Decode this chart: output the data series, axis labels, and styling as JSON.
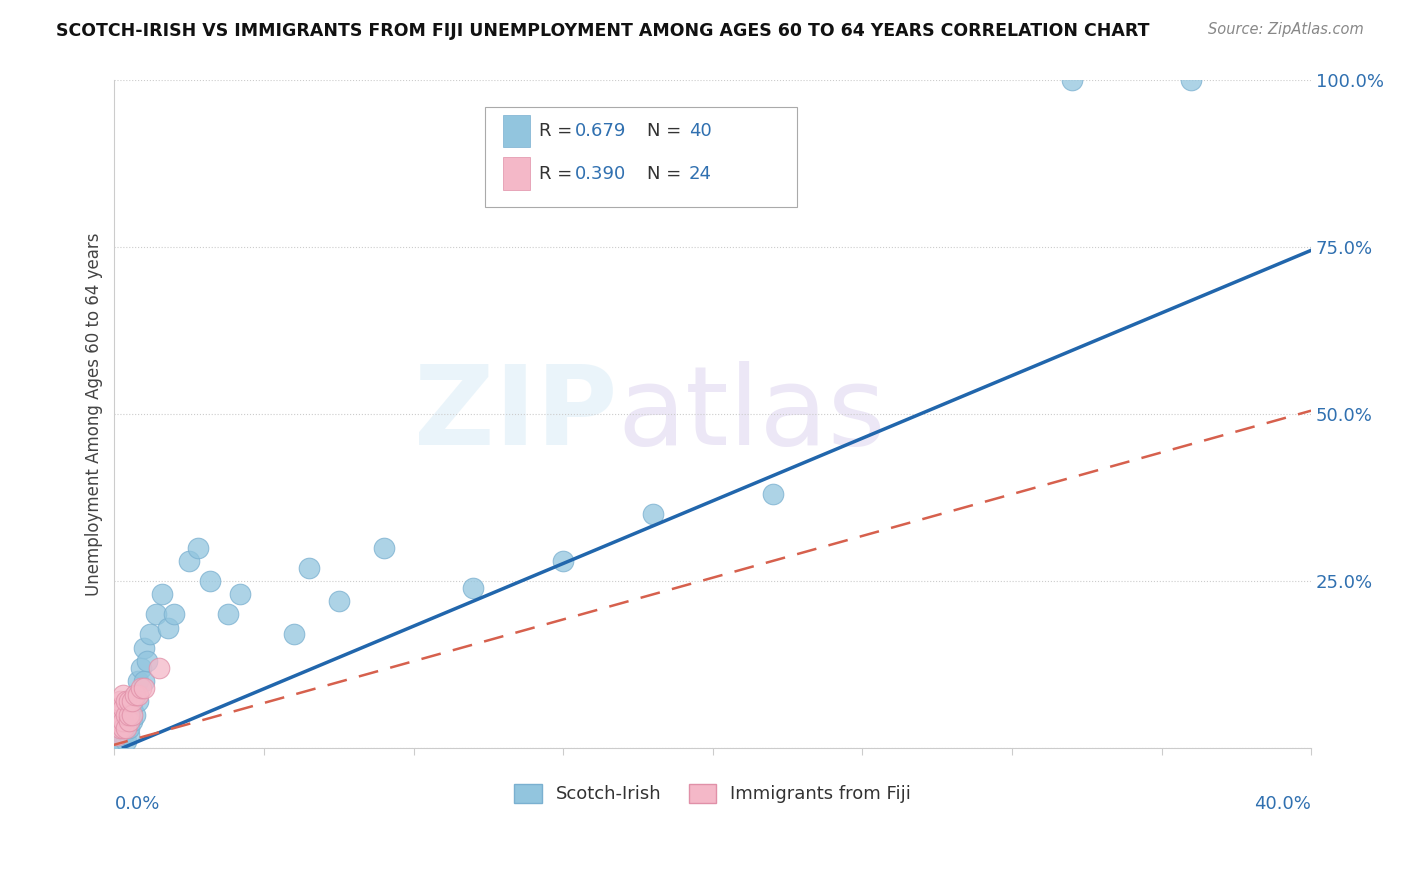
{
  "title": "SCOTCH-IRISH VS IMMIGRANTS FROM FIJI UNEMPLOYMENT AMONG AGES 60 TO 64 YEARS CORRELATION CHART",
  "source": "Source: ZipAtlas.com",
  "ylabel": "Unemployment Among Ages 60 to 64 years",
  "xlim": [
    0.0,
    0.4
  ],
  "ylim": [
    0.0,
    1.0
  ],
  "yticks": [
    0.0,
    0.25,
    0.5,
    0.75,
    1.0
  ],
  "ytick_labels": [
    "",
    "25.0%",
    "50.0%",
    "75.0%",
    "100.0%"
  ],
  "legend_label1": "Scotch-Irish",
  "legend_label2": "Immigrants from Fiji",
  "R1": "0.679",
  "N1": "40",
  "R2": "0.390",
  "N2": "24",
  "blue_color": "#92c5de",
  "blue_edge": "#7ab0d0",
  "pink_color": "#f4b8c8",
  "pink_edge": "#e090a8",
  "blue_line_color": "#2166ac",
  "pink_line_color": "#d6604d",
  "blue_trend_slope": 1.875,
  "blue_trend_intercept": -0.005,
  "pink_trend_slope": 1.25,
  "pink_trend_intercept": 0.005,
  "scotch_irish_x": [
    0.001,
    0.001,
    0.002,
    0.002,
    0.003,
    0.003,
    0.004,
    0.004,
    0.005,
    0.005,
    0.006,
    0.006,
    0.007,
    0.007,
    0.008,
    0.008,
    0.009,
    0.01,
    0.01,
    0.011,
    0.012,
    0.014,
    0.016,
    0.018,
    0.02,
    0.025,
    0.028,
    0.032,
    0.038,
    0.042,
    0.06,
    0.065,
    0.075,
    0.09,
    0.12,
    0.15,
    0.18,
    0.22,
    0.32,
    0.36
  ],
  "scotch_irish_y": [
    0.01,
    0.02,
    0.01,
    0.03,
    0.02,
    0.05,
    0.01,
    0.04,
    0.02,
    0.03,
    0.04,
    0.06,
    0.05,
    0.08,
    0.07,
    0.1,
    0.12,
    0.15,
    0.1,
    0.13,
    0.17,
    0.2,
    0.23,
    0.18,
    0.2,
    0.28,
    0.3,
    0.25,
    0.2,
    0.23,
    0.17,
    0.27,
    0.22,
    0.3,
    0.24,
    0.28,
    0.35,
    0.38,
    1.0,
    1.0
  ],
  "fiji_x": [
    0.001,
    0.001,
    0.001,
    0.002,
    0.002,
    0.002,
    0.002,
    0.003,
    0.003,
    0.003,
    0.003,
    0.004,
    0.004,
    0.004,
    0.005,
    0.005,
    0.005,
    0.006,
    0.006,
    0.007,
    0.008,
    0.009,
    0.01,
    0.015
  ],
  "fiji_y": [
    0.02,
    0.04,
    0.06,
    0.03,
    0.05,
    0.04,
    0.07,
    0.03,
    0.04,
    0.06,
    0.08,
    0.03,
    0.05,
    0.07,
    0.04,
    0.05,
    0.07,
    0.05,
    0.07,
    0.08,
    0.08,
    0.09,
    0.09,
    0.12
  ]
}
